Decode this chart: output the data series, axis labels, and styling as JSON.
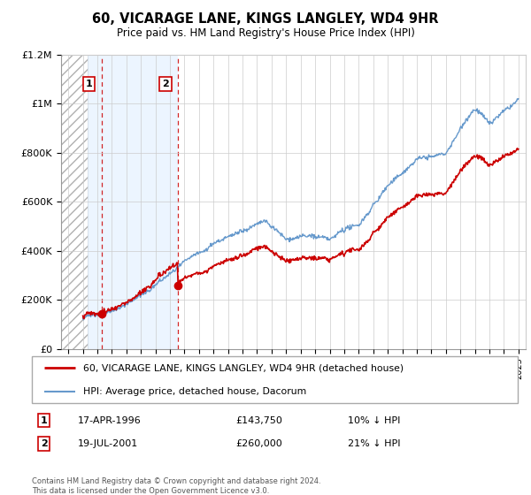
{
  "title": "60, VICARAGE LANE, KINGS LANGLEY, WD4 9HR",
  "subtitle": "Price paid vs. HM Land Registry's House Price Index (HPI)",
  "hatch_region_end": 1995.3,
  "sale1": {
    "date": 1996.29,
    "price": 143750,
    "label": "1",
    "pct": "10% ↓ HPI",
    "date_str": "17-APR-1996",
    "price_str": "£143,750"
  },
  "sale2": {
    "date": 2001.54,
    "price": 260000,
    "label": "2",
    "pct": "21% ↓ HPI",
    "date_str": "19-JUL-2001",
    "price_str": "£260,000"
  },
  "ylim": [
    0,
    1200000
  ],
  "xlim": [
    1993.5,
    2025.5
  ],
  "ylabel_ticks": [
    0,
    200000,
    400000,
    600000,
    800000,
    1000000,
    1200000
  ],
  "ylabel_labels": [
    "£0",
    "£200K",
    "£400K",
    "£600K",
    "£800K",
    "£1M",
    "£1.2M"
  ],
  "legend_line1": "60, VICARAGE LANE, KINGS LANGLEY, WD4 9HR (detached house)",
  "legend_line2": "HPI: Average price, detached house, Dacorum",
  "footnote": "Contains HM Land Registry data © Crown copyright and database right 2024.\nThis data is licensed under the Open Government Licence v3.0.",
  "red_color": "#cc0000",
  "blue_color": "#6699cc",
  "bg_color": "#ddeeff",
  "grid_color": "#cccccc",
  "box_color": "#cc0000",
  "hpi_seed": 42,
  "red_seed": 99
}
